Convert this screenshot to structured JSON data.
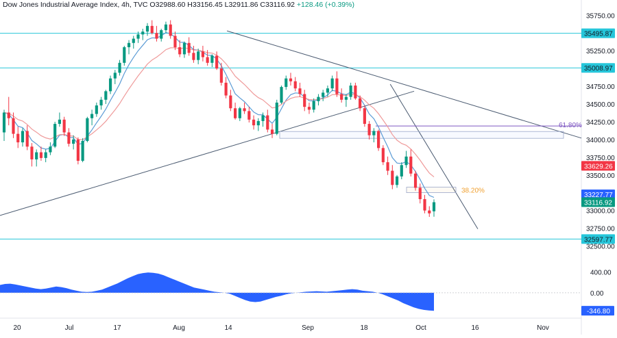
{
  "header": {
    "symbol": "Dow Jones Industrial Average Index, 4h, TVC",
    "open_label": "O",
    "open": "32988.60",
    "high_label": "H",
    "high": "33156.45",
    "low_label": "L",
    "low": "32911.86",
    "close_label": "C",
    "close": "33116.92",
    "change": "+128.46 (+0.39%)"
  },
  "colors": {
    "up": "#089981",
    "down": "#f23645",
    "hline": "#26c6da",
    "trend": "#5b6f8a",
    "ma_fast": "#5b9bd5",
    "ma_slow": "#ef9a9a",
    "osc": "#2962ff",
    "fib_618": "#7e57c2",
    "fib_382": "#f0a030"
  },
  "chart_data": [
    {
      "type": "candlestick",
      "title": "Dow Jones Industrial Average Index, 4h, TVC",
      "yaxis": {
        "ticks": [
          35750,
          35500,
          35250,
          35000,
          34750,
          34500,
          34250,
          34000,
          33750,
          33500,
          33250,
          33000,
          32750,
          32500
        ],
        "tick_labels": [
          "35750.00",
          "35500.00",
          "35250.00",
          "35000.00",
          "34750.00",
          "34500.00",
          "34250.00",
          "34000.00",
          "33750.00",
          "33500.00",
          "33250.00",
          "33000.00",
          "32750.00",
          "32500.00"
        ],
        "ylim": [
          32380,
          35830
        ],
        "side": "right"
      },
      "xaxis": {
        "tick_labels": [
          "20",
          "Jul",
          "17",
          "Aug",
          "14",
          "Sep",
          "18",
          "Oct",
          "16",
          "Nov"
        ],
        "start": "2023-06-15",
        "end": "2023-11-08"
      },
      "horizontal_levels": [
        {
          "value": 35495.87,
          "label": "35495.87"
        },
        {
          "value": 35008.97,
          "label": "35008.97"
        },
        {
          "value": 32597.77,
          "label": "32597.77"
        }
      ],
      "price_labels": [
        {
          "value": 33629.26,
          "label": "33629.26",
          "series": "slow MA"
        },
        {
          "value": 33227.77,
          "label": "33227.77",
          "series": "fast MA"
        },
        {
          "value": 33116.92,
          "label": "33116.92",
          "series": "last price"
        }
      ],
      "fib_levels": [
        {
          "label": "61.80%",
          "value": 34190
        },
        {
          "label": "38.20%",
          "value": 33290
        }
      ],
      "trendlines": [
        {
          "from": [
            "2023-06-15",
            32930
          ],
          "to": [
            "2023-09-27",
            34680
          ]
        },
        {
          "from": [
            "2023-08-11",
            35530
          ],
          "to": [
            "2023-11-08",
            34020
          ]
        },
        {
          "from": [
            "2023-09-21",
            34780
          ],
          "to": [
            "2023-10-13",
            32740
          ]
        }
      ],
      "candles": [
        [
          34100,
          34420,
          33980,
          34380
        ],
        [
          34380,
          34600,
          34200,
          34300
        ],
        [
          34300,
          34380,
          34020,
          34080
        ],
        [
          34080,
          34180,
          33880,
          33960
        ],
        [
          33960,
          34160,
          33900,
          34120
        ],
        [
          34120,
          34200,
          33850,
          33900
        ],
        [
          33900,
          33950,
          33620,
          33720
        ],
        [
          33720,
          33860,
          33620,
          33820
        ],
        [
          33820,
          33900,
          33700,
          33740
        ],
        [
          33740,
          33860,
          33680,
          33820
        ],
        [
          33820,
          33960,
          33780,
          33900
        ],
        [
          33900,
          34250,
          33880,
          34220
        ],
        [
          34220,
          34380,
          34180,
          34280
        ],
        [
          34280,
          34320,
          34050,
          34100
        ],
        [
          34100,
          34160,
          33900,
          33940
        ],
        [
          33940,
          34060,
          33860,
          34000
        ],
        [
          34000,
          34030,
          33650,
          33700
        ],
        [
          33700,
          34020,
          33680,
          33980
        ],
        [
          33980,
          34320,
          33960,
          34300
        ],
        [
          34300,
          34420,
          34200,
          34360
        ],
        [
          34360,
          34520,
          34320,
          34480
        ],
        [
          34480,
          34600,
          34420,
          34560
        ],
        [
          34560,
          34700,
          34500,
          34680
        ],
        [
          34680,
          34900,
          34640,
          34860
        ],
        [
          34860,
          34980,
          34780,
          34940
        ],
        [
          34940,
          35120,
          34900,
          35080
        ],
        [
          35080,
          35320,
          35040,
          35300
        ],
        [
          35300,
          35400,
          35200,
          35360
        ],
        [
          35360,
          35460,
          35280,
          35420
        ],
        [
          35420,
          35520,
          35360,
          35480
        ],
        [
          35480,
          35560,
          35400,
          35520
        ],
        [
          35520,
          35640,
          35460,
          35600
        ],
        [
          35600,
          35680,
          35480,
          35500
        ],
        [
          35500,
          35600,
          35380,
          35420
        ],
        [
          35420,
          35560,
          35380,
          35540
        ],
        [
          35540,
          35660,
          35500,
          35620
        ],
        [
          35620,
          35680,
          35420,
          35460
        ],
        [
          35460,
          35520,
          35260,
          35300
        ],
        [
          35300,
          35400,
          35160,
          35200
        ],
        [
          35200,
          35380,
          35150,
          35360
        ],
        [
          35360,
          35440,
          35180,
          35220
        ],
        [
          35220,
          35320,
          35080,
          35120
        ],
        [
          35120,
          35280,
          35060,
          35240
        ],
        [
          35240,
          35320,
          35100,
          35160
        ],
        [
          35160,
          35260,
          35040,
          35080
        ],
        [
          35080,
          35200,
          35020,
          35180
        ],
        [
          35180,
          35240,
          34980,
          35000
        ],
        [
          35000,
          35080,
          34760,
          34800
        ],
        [
          34800,
          34880,
          34580,
          34620
        ],
        [
          34620,
          34700,
          34400,
          34440
        ],
        [
          34440,
          34520,
          34280,
          34300
        ],
        [
          34300,
          34460,
          34260,
          34440
        ],
        [
          34440,
          34520,
          34360,
          34400
        ],
        [
          34400,
          34460,
          34240,
          34280
        ],
        [
          34280,
          34340,
          34140,
          34200
        ],
        [
          34200,
          34300,
          34120,
          34260
        ],
        [
          34260,
          34380,
          34180,
          34340
        ],
        [
          34340,
          34420,
          34100,
          34140
        ],
        [
          34140,
          34220,
          34020,
          34080
        ],
        [
          34080,
          34560,
          34060,
          34520
        ],
        [
          34520,
          34760,
          34500,
          34740
        ],
        [
          34740,
          34900,
          34700,
          34860
        ],
        [
          34860,
          34940,
          34760,
          34820
        ],
        [
          34820,
          34880,
          34680,
          34720
        ],
        [
          34720,
          34800,
          34600,
          34640
        ],
        [
          34640,
          34700,
          34400,
          34460
        ],
        [
          34460,
          34520,
          34360,
          34420
        ],
        [
          34420,
          34580,
          34380,
          34540
        ],
        [
          34540,
          34640,
          34480,
          34600
        ],
        [
          34600,
          34700,
          34540,
          34660
        ],
        [
          34660,
          34760,
          34600,
          34720
        ],
        [
          34720,
          34900,
          34680,
          34860
        ],
        [
          34860,
          34960,
          34600,
          34640
        ],
        [
          34640,
          34720,
          34520,
          34560
        ],
        [
          34560,
          34640,
          34460,
          34600
        ],
        [
          34600,
          34800,
          34560,
          34760
        ],
        [
          34760,
          34800,
          34560,
          34580
        ],
        [
          34580,
          34620,
          34400,
          34440
        ],
        [
          34440,
          34480,
          34180,
          34220
        ],
        [
          34220,
          34260,
          34000,
          34060
        ],
        [
          34060,
          34160,
          33960,
          34120
        ],
        [
          34120,
          34140,
          33840,
          33880
        ],
        [
          33880,
          33920,
          33640,
          33680
        ],
        [
          33680,
          33760,
          33500,
          33560
        ],
        [
          33560,
          33640,
          33300,
          33360
        ],
        [
          33360,
          33500,
          33320,
          33480
        ],
        [
          33480,
          33680,
          33440,
          33640
        ],
        [
          33640,
          33840,
          33600,
          33760
        ],
        [
          33760,
          33860,
          33480,
          33520
        ],
        [
          33520,
          33560,
          33280,
          33320
        ],
        [
          33320,
          33380,
          33100,
          33160
        ],
        [
          33160,
          33220,
          32960,
          33000
        ],
        [
          33000,
          33060,
          32910,
          32960
        ],
        [
          32988.6,
          33156.45,
          32911.86,
          33116.92
        ]
      ],
      "ma_fast": [
        33227.77
      ],
      "ma_slow": [
        33629.26
      ]
    },
    {
      "type": "area",
      "title": "",
      "yaxis": {
        "ticks": [
          400,
          0
        ],
        "tick_labels": [
          "400.00",
          "0.00"
        ],
        "ylim": [
          -450,
          500
        ]
      },
      "last_value_label": "-346.80",
      "values": [
        150,
        170,
        175,
        160,
        140,
        120,
        100,
        80,
        70,
        80,
        100,
        120,
        110,
        90,
        60,
        40,
        20,
        15,
        20,
        40,
        60,
        100,
        140,
        180,
        230,
        280,
        320,
        360,
        380,
        390,
        385,
        370,
        340,
        300,
        260,
        220,
        180,
        140,
        100,
        80,
        60,
        40,
        20,
        10,
        0,
        -20,
        -60,
        -100,
        -140,
        -170,
        -180,
        -170,
        -140,
        -110,
        -80,
        -60,
        -30,
        -10,
        0,
        10,
        20,
        25,
        30,
        25,
        20,
        30,
        40,
        50,
        60,
        70,
        60,
        40,
        30,
        20,
        0,
        -30,
        -70,
        -110,
        -150,
        -200,
        -240,
        -280,
        -310,
        -330,
        -340,
        -346.8
      ]
    }
  ]
}
